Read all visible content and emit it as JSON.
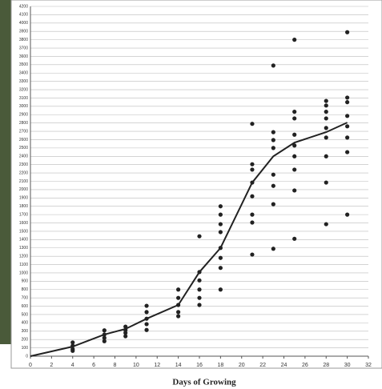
{
  "chart_data": {
    "type": "scatter",
    "xlabel": "Days of Growing",
    "xlim": [
      0,
      32
    ],
    "xticks": [
      0,
      2,
      4,
      6,
      8,
      10,
      12,
      14,
      16,
      18,
      20,
      22,
      24,
      26,
      28,
      30,
      32
    ],
    "ylim": [
      0,
      4200
    ],
    "yticks": [
      0,
      100,
      200,
      300,
      400,
      500,
      600,
      700,
      800,
      900,
      1000,
      1100,
      1200,
      1300,
      1400,
      1500,
      1600,
      1700,
      1800,
      1900,
      2000,
      2100,
      2200,
      2300,
      2400,
      2500,
      2600,
      2700,
      2800,
      2900,
      3000,
      3100,
      3200,
      3300,
      3400,
      3500,
      3600,
      3700,
      3800,
      3900,
      4000,
      4100,
      4200
    ],
    "grid": true,
    "points": {
      "color": "#222222",
      "x": [
        4,
        4,
        4,
        4,
        7,
        7,
        7,
        7,
        9,
        9,
        9,
        9,
        11,
        11,
        11,
        11,
        11,
        14,
        14,
        14,
        14,
        14,
        16,
        16,
        16,
        16,
        16,
        16,
        18,
        18,
        18,
        18,
        18,
        18,
        18,
        18,
        21,
        21,
        21,
        21,
        21,
        21,
        21,
        21,
        23,
        23,
        23,
        23,
        23,
        23,
        23,
        23,
        25,
        25,
        25,
        25,
        25,
        25,
        25,
        25,
        25,
        28,
        28,
        28,
        28,
        28,
        28,
        28,
        28,
        28,
        30,
        30,
        30,
        30,
        30,
        30,
        30,
        30
      ],
      "y": [
        165,
        125,
        85,
        65,
        310,
        260,
        220,
        180,
        355,
        315,
        280,
        240,
        605,
        530,
        450,
        385,
        315,
        800,
        700,
        615,
        530,
        480,
        1440,
        1010,
        910,
        800,
        700,
        615,
        1800,
        1700,
        1585,
        1490,
        1300,
        1180,
        1060,
        800,
        2790,
        2305,
        2240,
        2085,
        1920,
        1700,
        1605,
        1220,
        3490,
        2690,
        2595,
        2500,
        2180,
        2045,
        1825,
        1290,
        3800,
        2935,
        2855,
        2660,
        2530,
        2400,
        2240,
        1990,
        1410,
        3065,
        3010,
        2935,
        2855,
        2740,
        2625,
        2400,
        2085,
        1585,
        3890,
        3105,
        3050,
        2885,
        2760,
        2625,
        2450,
        1700
      ]
    },
    "line": {
      "color": "#222222",
      "x": [
        0,
        4,
        7,
        9,
        11,
        14,
        16,
        18,
        21,
        23,
        25,
        28,
        30
      ],
      "y": [
        0,
        115,
        260,
        327,
        450,
        615,
        1010,
        1300,
        2085,
        2400,
        2565,
        2690,
        2805
      ]
    }
  }
}
